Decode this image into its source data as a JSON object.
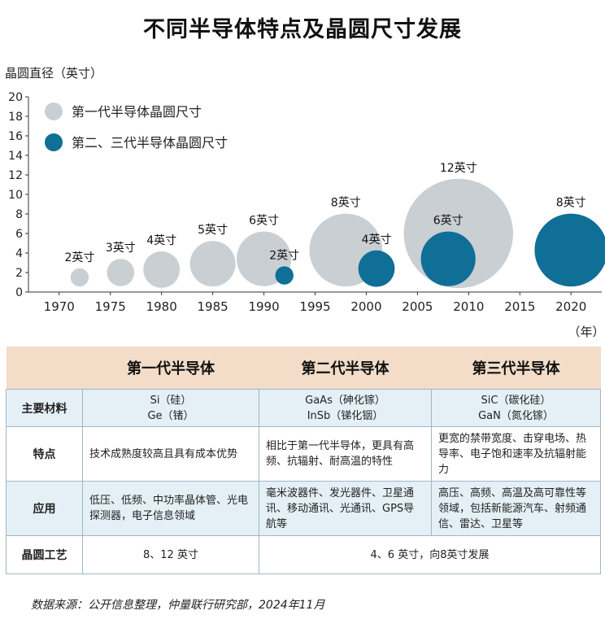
{
  "title": "不同半导体特点及晶圆尺寸发展",
  "chart_data": {
    "type": "bubble",
    "ylabel": "晶圆直径（英寸）",
    "xlabel": "（年）",
    "xlim": [
      1967,
      2023
    ],
    "ylim": [
      0,
      20
    ],
    "x_ticks": [
      1970,
      1975,
      1980,
      1985,
      1990,
      1995,
      2000,
      2005,
      2010,
      2015,
      2020
    ],
    "y_ticks": [
      0,
      2,
      4,
      6,
      8,
      10,
      12,
      14,
      16,
      18,
      20
    ],
    "grid": false,
    "legend_position": "top-left",
    "colors": {
      "gen1": "#c9cfd3",
      "gen23": "#0f6f96"
    },
    "series": [
      {
        "name": "第一代半导体晶圆尺寸",
        "color": "#c9cfd3",
        "points": [
          {
            "x": 1972,
            "y": 1.5,
            "size": 2,
            "label": "2英寸"
          },
          {
            "x": 1976,
            "y": 2,
            "size": 3,
            "label": "3英寸"
          },
          {
            "x": 1980,
            "y": 2.3,
            "size": 4,
            "label": "4英寸"
          },
          {
            "x": 1985,
            "y": 2.9,
            "size": 5,
            "label": "5英寸"
          },
          {
            "x": 1990,
            "y": 3.4,
            "size": 6,
            "label": "6英寸"
          },
          {
            "x": 1998,
            "y": 4.3,
            "size": 8,
            "label": "8英寸"
          },
          {
            "x": 2009,
            "y": 6,
            "size": 12,
            "label": "12英寸"
          }
        ]
      },
      {
        "name": "第二、三代半导体晶圆尺寸",
        "color": "#0f6f96",
        "points": [
          {
            "x": 1992,
            "y": 1.7,
            "size": 2,
            "label": "2英寸"
          },
          {
            "x": 2001,
            "y": 2.4,
            "size": 4,
            "label": "4英寸"
          },
          {
            "x": 2008,
            "y": 3.4,
            "size": 6,
            "label": "6英寸"
          },
          {
            "x": 2020,
            "y": 4.3,
            "size": 8,
            "label": "8英寸"
          }
        ]
      }
    ]
  },
  "table": {
    "headers": [
      "",
      "第一代半导体",
      "第二代半导体",
      "第三代半导体"
    ],
    "rows": {
      "materials": {
        "label": "主要材料",
        "g1a": "Si（硅）",
        "g1b": "Ge（锗）",
        "g2a": "GaAs（砷化镓）",
        "g2b": "InSb（锑化铟）",
        "g3a": "SiC（碳化硅）",
        "g3b": "GaN（氮化镓）"
      },
      "features": {
        "label": "特点",
        "g1": "技术成熟度较高且具有成本优势",
        "g2": "相比于第一代半导体，更具有高频、抗辐射、耐高温的特性",
        "g3": "更宽的禁带宽度、击穿电场、热导率、电子饱和速率及抗辐射能力"
      },
      "applications": {
        "label": "应用",
        "g1": "低压、低频、中功率晶体管、光电探测器，电子信息领域",
        "g2": "毫米波器件、发光器件、卫星通讯、移动通讯、光通讯、GPS导航等",
        "g3": "高压、高频、高温及高可靠性等领域，包括新能源汽车、射频通信、雷达、卫星等"
      },
      "process": {
        "label": "晶圆工艺",
        "g1": "8、12 英寸",
        "g23": "4、6 英寸，向8英寸发展"
      }
    }
  },
  "source": "数据来源：公开信息整理，仲量联行研究部，2024年11月"
}
